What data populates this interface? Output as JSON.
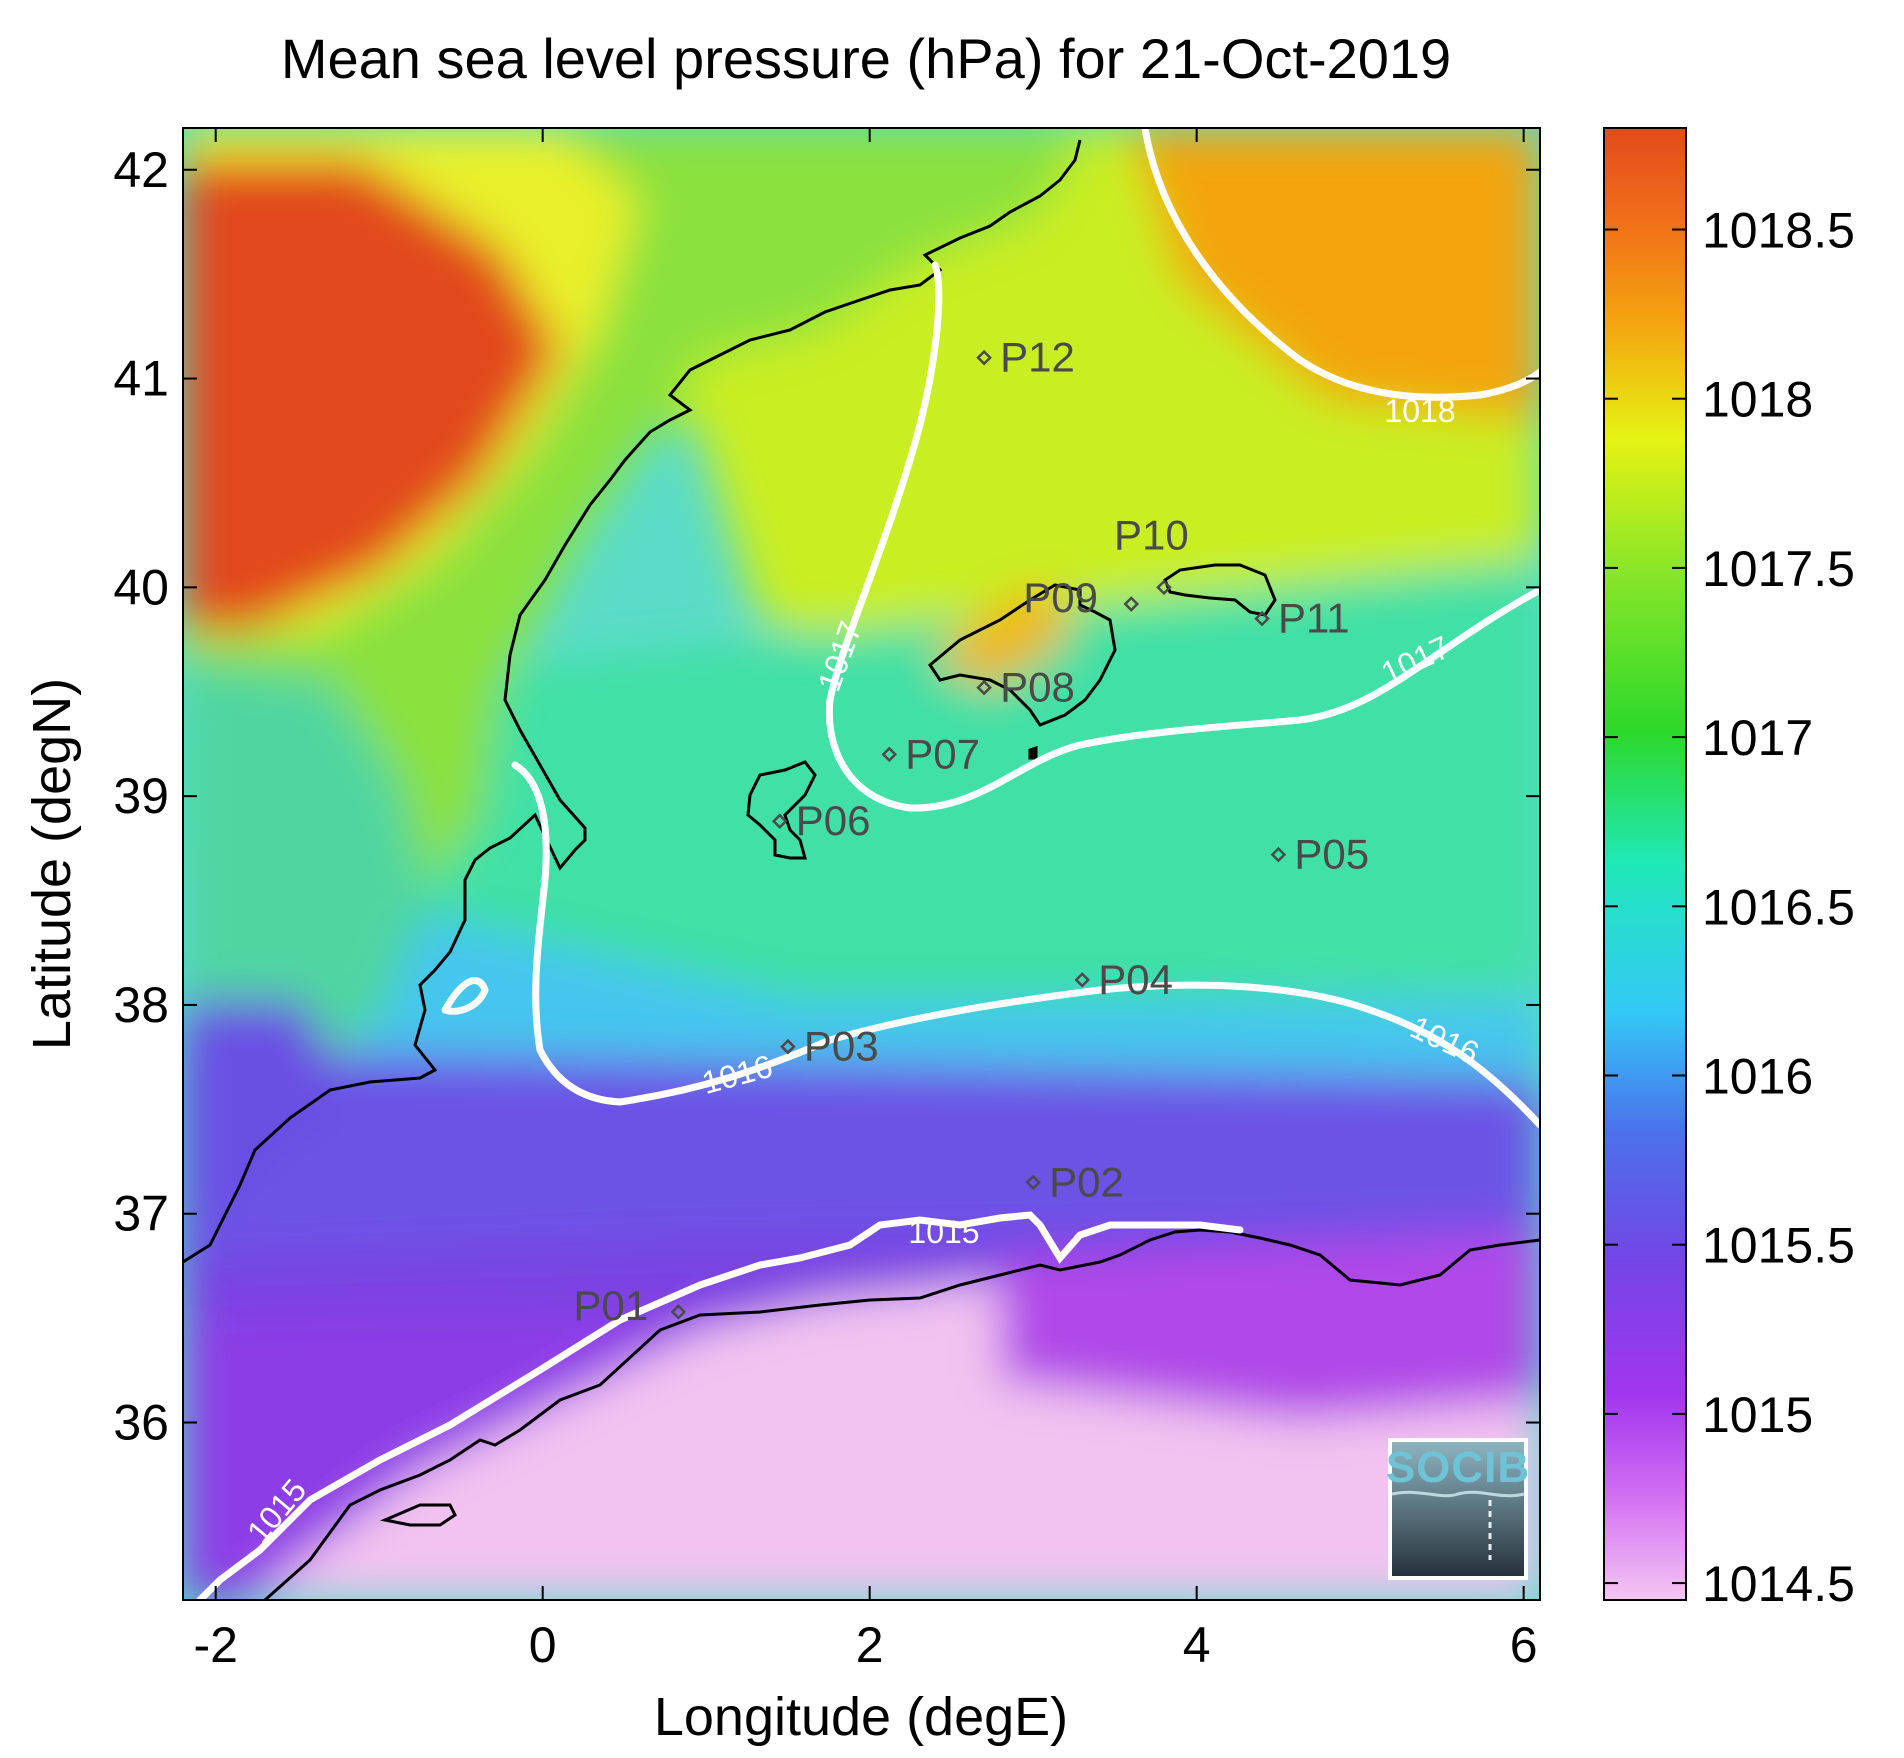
{
  "title": "Mean sea level pressure (hPa) for 21-Oct-2019",
  "map": {
    "xlabel": "Longitude (degE)",
    "ylabel": "Latitude (degN)",
    "xlim": [
      -2.2,
      6.1
    ],
    "ylim": [
      35.15,
      42.2
    ],
    "xticks": [
      -2,
      0,
      2,
      4,
      6
    ],
    "yticks": [
      36,
      37,
      38,
      39,
      40,
      41,
      42
    ]
  },
  "colorbar": {
    "range": [
      1014.45,
      1018.8
    ],
    "ticks": [
      1014.5,
      1015,
      1015.5,
      1016,
      1016.5,
      1017,
      1017.5,
      1018,
      1018.5
    ],
    "colors": [
      "#f4c6f2",
      "#b43cf0",
      "#7445e6",
      "#33c9f6",
      "#20e8b8",
      "#2cd92a",
      "#e6f213",
      "#f4a20f",
      "#e34a1c"
    ]
  },
  "contours": [
    {
      "level": 1015,
      "label": "1015"
    },
    {
      "level": 1016,
      "label": "1016"
    },
    {
      "level": 1017,
      "label": "1017"
    },
    {
      "level": 1018,
      "label": "1018"
    }
  ],
  "stations": [
    {
      "id": "P01",
      "lon": 0.83,
      "lat": 36.53
    },
    {
      "id": "P02",
      "lon": 3.0,
      "lat": 37.15
    },
    {
      "id": "P03",
      "lon": 1.5,
      "lat": 37.8
    },
    {
      "id": "P04",
      "lon": 3.3,
      "lat": 38.12
    },
    {
      "id": "P05",
      "lon": 4.5,
      "lat": 38.72
    },
    {
      "id": "P06",
      "lon": 1.45,
      "lat": 38.88
    },
    {
      "id": "P07",
      "lon": 2.12,
      "lat": 39.2
    },
    {
      "id": "P08",
      "lon": 2.7,
      "lat": 39.52
    },
    {
      "id": "P09",
      "lon": 3.6,
      "lat": 39.92
    },
    {
      "id": "P10",
      "lon": 3.8,
      "lat": 40.0
    },
    {
      "id": "P11",
      "lon": 4.4,
      "lat": 39.85
    },
    {
      "id": "P12",
      "lon": 2.7,
      "lat": 41.1
    }
  ],
  "logo": {
    "text": "SOCIB",
    "icon": "socib-logo-icon"
  }
}
